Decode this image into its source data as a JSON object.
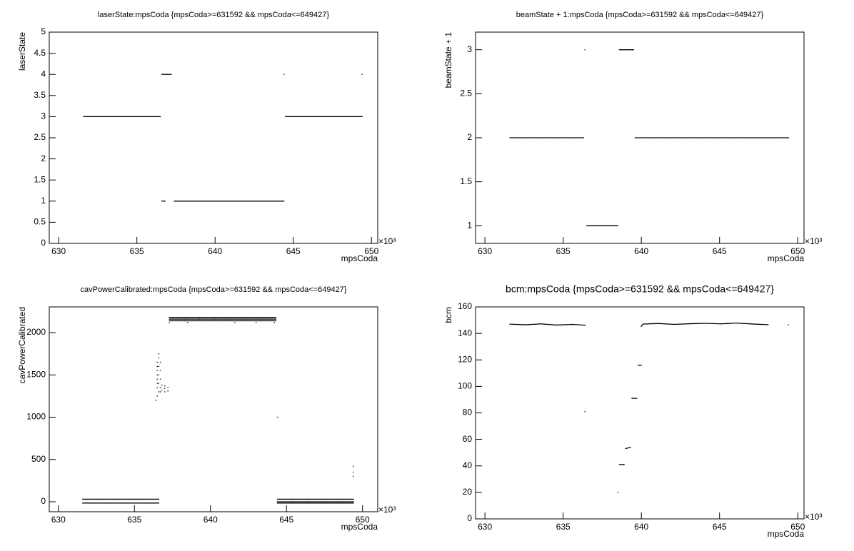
{
  "chart_data": [
    {
      "type": "scatter",
      "title": "laserState:mpsCoda {mpsCoda>=631592 && mpsCoda<=649427}",
      "x_label": "mpsCoda",
      "y_label": "laserState",
      "x_multiplier": "×10³",
      "color": "#000000",
      "xlim": [
        629.4,
        650.4
      ],
      "ylim": [
        0,
        5
      ],
      "xticks": [
        630,
        635,
        640,
        645,
        650
      ],
      "yticks": [
        0,
        0.5,
        1,
        1.5,
        2,
        2.5,
        3,
        3.5,
        4,
        4.5,
        5
      ],
      "x": [
        631.6,
        632.6,
        633.6,
        634.6,
        635.6,
        636.5,
        636.6,
        636.8,
        636.6,
        637.2,
        637.4,
        638.4,
        639.4,
        640.4,
        641.4,
        642.4,
        643.4,
        644.4,
        644.4,
        644.5,
        645.5,
        646.5,
        647.5,
        648.5,
        649.4,
        649.4
      ],
      "values": [
        3,
        3,
        3,
        3,
        3,
        3,
        1,
        1,
        4,
        4,
        1,
        1,
        1,
        1,
        1,
        1,
        1,
        1,
        4,
        3,
        3,
        3,
        3,
        3,
        3,
        4
      ]
    },
    {
      "type": "scatter",
      "title": "beamState + 1:mpsCoda {mpsCoda>=631592 && mpsCoda<=649427}",
      "x_label": "mpsCoda",
      "y_label": "beamState + 1",
      "x_multiplier": "×10³",
      "color": "#000000",
      "xlim": [
        629.4,
        650.4
      ],
      "ylim": [
        0.8,
        3.2
      ],
      "xticks": [
        630,
        635,
        640,
        645,
        650
      ],
      "yticks": [
        1,
        1.5,
        2,
        2.5,
        3
      ],
      "x": [
        631.6,
        632.6,
        633.6,
        634.6,
        635.6,
        636.3,
        636.4,
        636.5,
        637.5,
        638.5,
        638.6,
        639.5,
        639.6,
        640.6,
        641.6,
        642.6,
        643.6,
        644.6,
        645.6,
        646.6,
        647.6,
        648.6,
        649.4
      ],
      "values": [
        2,
        2,
        2,
        2,
        2,
        2,
        3,
        1,
        1,
        1,
        3,
        3,
        2,
        2,
        2,
        2,
        2,
        2,
        2,
        2,
        2,
        2,
        2
      ]
    },
    {
      "type": "scatter",
      "title": "cavPowerCalibrated:mpsCoda {mpsCoda>=631592 && mpsCoda<=649427}",
      "x_label": "mpsCoda",
      "y_label": "cavPowerCalibrated",
      "x_multiplier": "×10³",
      "color": "#000000",
      "xlim": [
        629.4,
        651.0
      ],
      "ylim": [
        -118,
        2304
      ],
      "xticks": [
        630,
        635,
        640,
        645,
        650
      ],
      "yticks": [
        0,
        500,
        1000,
        1500,
        2000
      ],
      "x": [
        631.6,
        632.6,
        633.6,
        634.6,
        635.6,
        636.6,
        631.6,
        632.6,
        633.6,
        634.6,
        635.6,
        636.6,
        636.4,
        636.5,
        636.5,
        636.5,
        636.5,
        636.5,
        636.5,
        636.5,
        636.5,
        636.6,
        636.6,
        636.6,
        636.6,
        636.6,
        636.6,
        636.7,
        636.7,
        636.7,
        636.7,
        636.7,
        636.8,
        636.8,
        637.0,
        637.0,
        637.0,
        637.2,
        637.2,
        637.3,
        638.3,
        639.3,
        640.3,
        641.3,
        642.3,
        643.3,
        644.3,
        637.3,
        638.3,
        639.3,
        640.3,
        641.3,
        642.3,
        643.3,
        644.3,
        637.3,
        638.3,
        639.3,
        640.3,
        641.3,
        642.3,
        643.3,
        644.3,
        637.3,
        638.5,
        641.6,
        643.0,
        644.2,
        644.4,
        644.4,
        645.4,
        646.4,
        647.4,
        648.4,
        649.4,
        644.4,
        645.4,
        646.4,
        647.4,
        648.4,
        649.4,
        644.4,
        645.4,
        646.4,
        647.4,
        648.4,
        649.4,
        649.4,
        649.4,
        649.4
      ],
      "values": [
        30,
        30,
        30,
        30,
        30,
        30,
        -15,
        -15,
        -15,
        -15,
        -15,
        -15,
        1200,
        1250,
        1350,
        1400,
        1450,
        1500,
        1550,
        1600,
        1650,
        1300,
        1400,
        1500,
        1600,
        1700,
        1750,
        1300,
        1350,
        1450,
        1550,
        1650,
        1320,
        1380,
        1300,
        1340,
        1370,
        1310,
        1350,
        2180,
        2180,
        2180,
        2180,
        2180,
        2180,
        2180,
        2180,
        2160,
        2160,
        2160,
        2160,
        2160,
        2160,
        2160,
        2160,
        2140,
        2140,
        2140,
        2140,
        2140,
        2140,
        2140,
        2140,
        2120,
        2120,
        2120,
        2120,
        2120,
        1000,
        30,
        30,
        30,
        30,
        30,
        30,
        0,
        0,
        0,
        0,
        0,
        0,
        -15,
        -15,
        -15,
        -15,
        -15,
        -15,
        300,
        350,
        420
      ]
    },
    {
      "type": "scatter",
      "title": "bcm:mpsCoda {mpsCoda>=631592 && mpsCoda<=649427}",
      "x_label": "mpsCoda",
      "y_label": "bcm",
      "x_multiplier": "×10³",
      "color": "#000000",
      "xlim": [
        629.4,
        650.4
      ],
      "ylim": [
        0,
        160
      ],
      "xticks": [
        630,
        635,
        640,
        645,
        650
      ],
      "yticks": [
        0,
        20,
        40,
        60,
        80,
        100,
        120,
        140,
        160
      ],
      "x": [
        631.6,
        632.6,
        633.6,
        634.6,
        635.6,
        636.4,
        636.4,
        638.5,
        638.6,
        638.9,
        639.0,
        639.3,
        639.4,
        639.7,
        639.8,
        640.0,
        640.0,
        640.1,
        641.1,
        642.1,
        643.1,
        644.1,
        645.1,
        646.1,
        647.1,
        648.1,
        649.4
      ],
      "values": [
        147,
        146.5,
        147.2,
        146.3,
        146.8,
        146.2,
        81,
        20,
        41,
        41,
        53,
        54,
        91,
        91,
        116,
        116,
        145,
        147,
        147.5,
        146.8,
        147.3,
        147.6,
        147.2,
        147.8,
        147.1,
        146.6,
        146.5
      ]
    }
  ]
}
